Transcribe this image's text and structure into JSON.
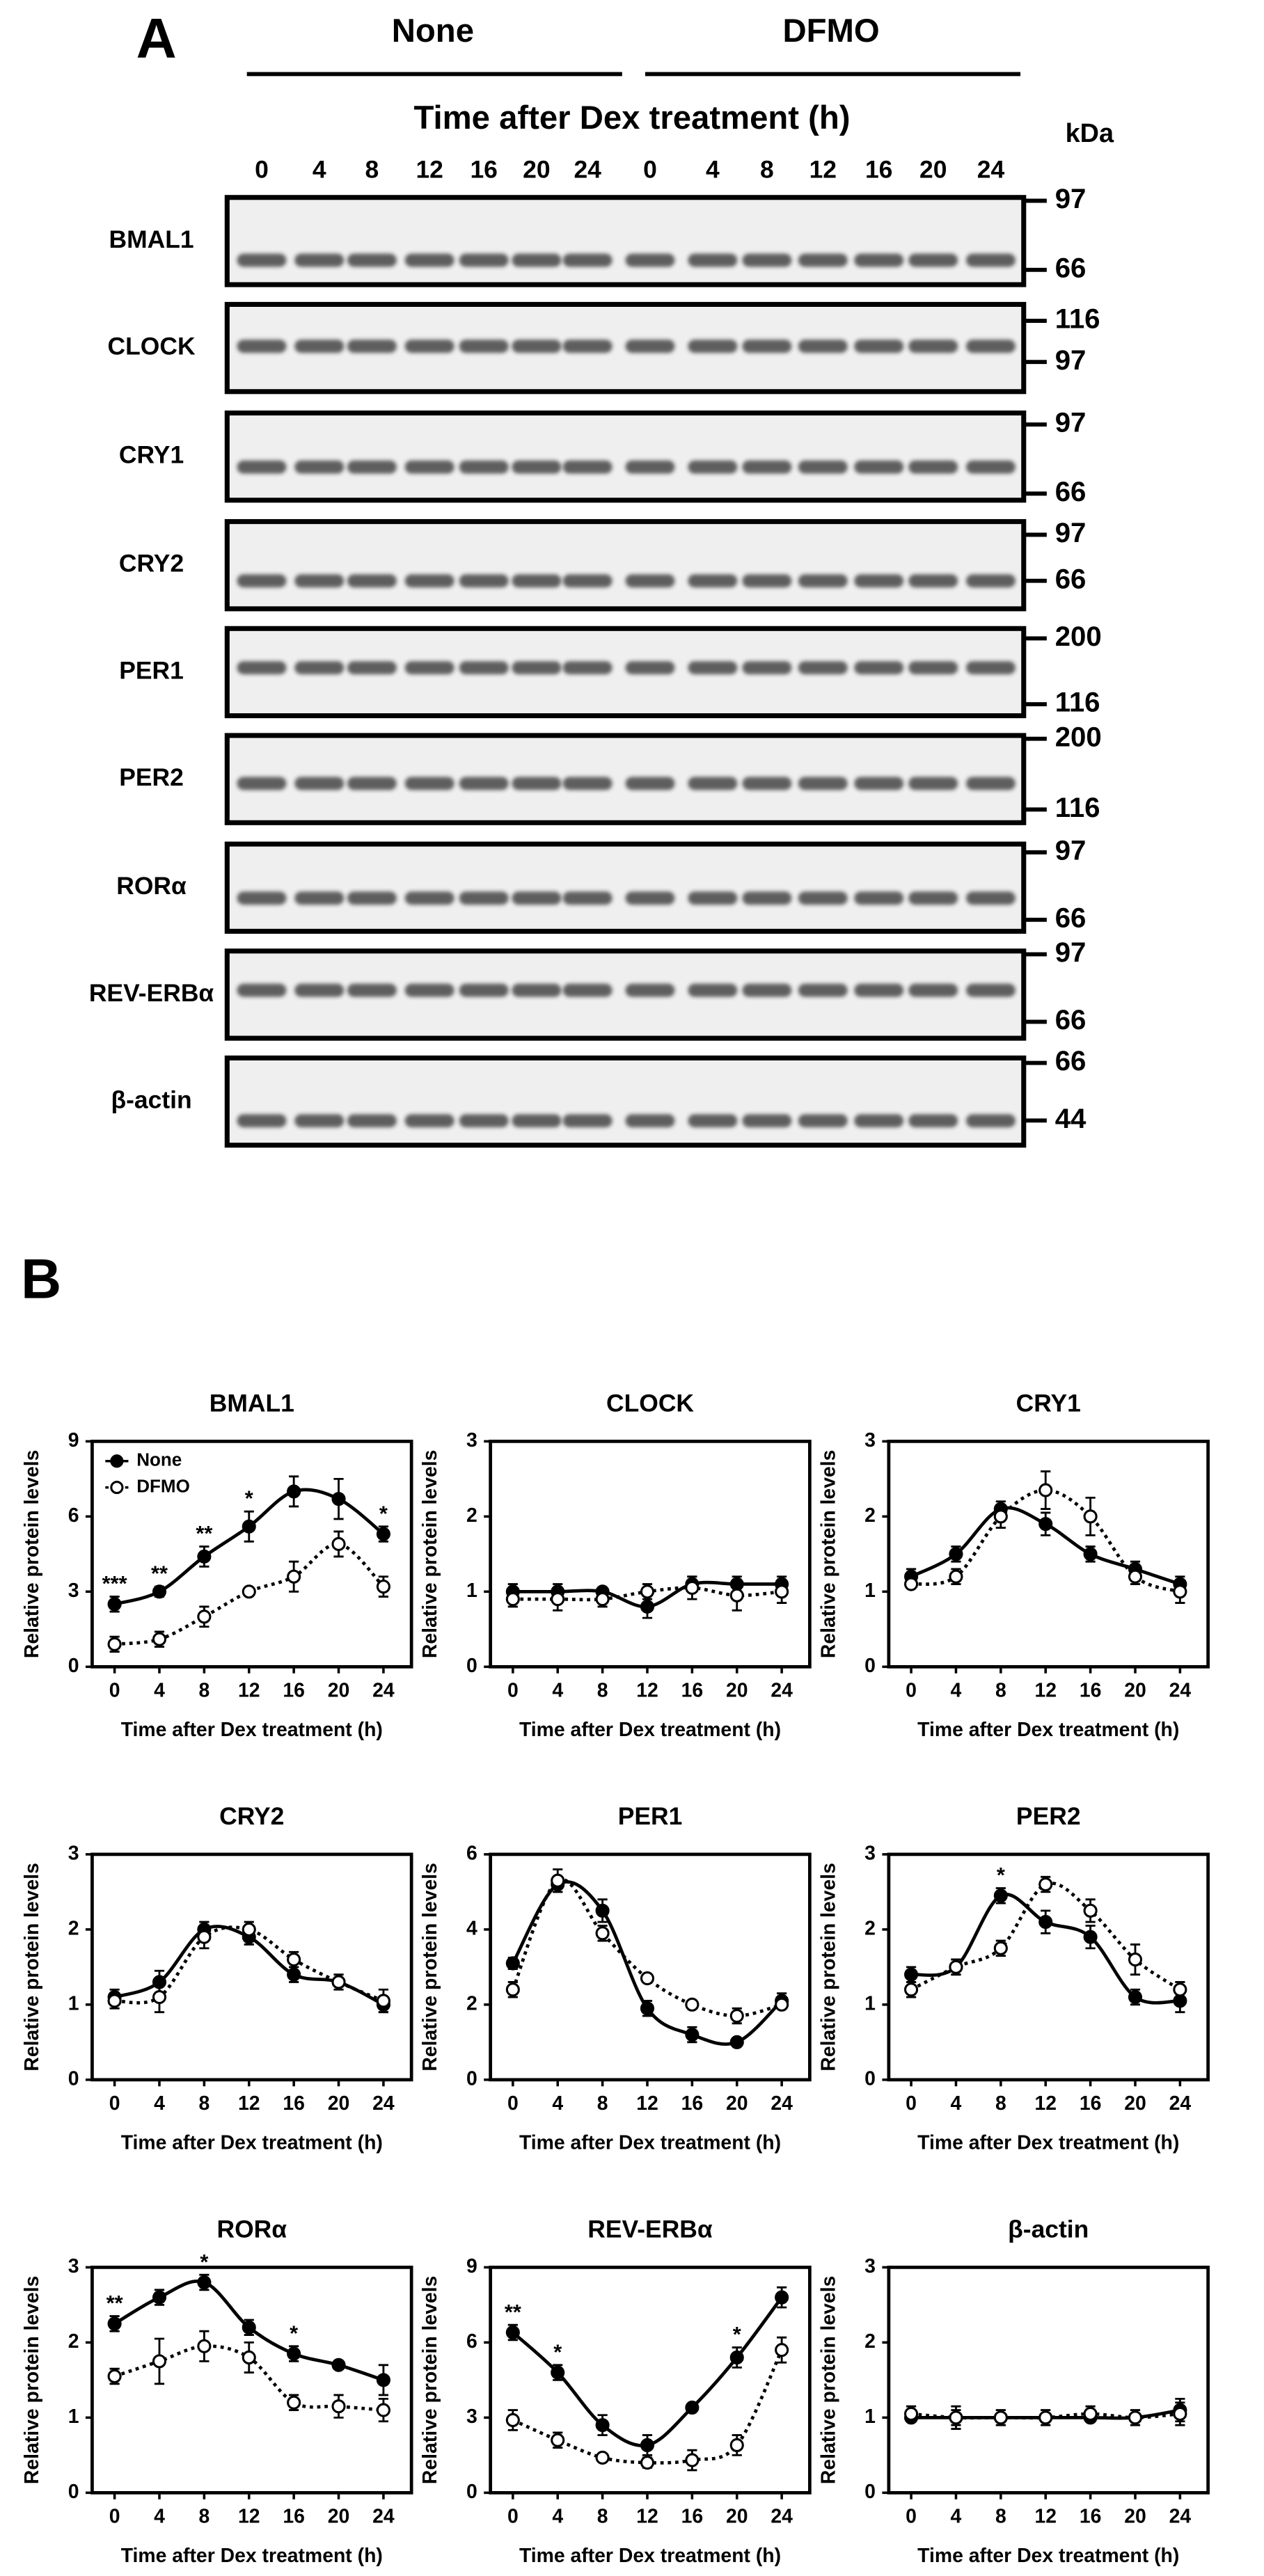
{
  "panel_a": {
    "label": "A",
    "groups": [
      "None",
      "DFMO"
    ],
    "axis_label": "Time after Dex treatment (h)",
    "unit": "kDa",
    "lanes": [
      0,
      4,
      8,
      12,
      16,
      20,
      24,
      0,
      4,
      8,
      12,
      16,
      20,
      24
    ],
    "rows": [
      {
        "label": "BMAL1",
        "markers": [
          97,
          66
        ]
      },
      {
        "label": "CLOCK",
        "markers": [
          116,
          97
        ]
      },
      {
        "label": "CRY1",
        "markers": [
          97,
          66
        ]
      },
      {
        "label": "CRY2",
        "markers": [
          97,
          66
        ]
      },
      {
        "label": "PER1",
        "markers": [
          200,
          116
        ]
      },
      {
        "label": "PER2",
        "markers": [
          200,
          116
        ]
      },
      {
        "label": "RORα",
        "markers": [
          97,
          66
        ]
      },
      {
        "label": "REV-ERBα",
        "markers": [
          97,
          66
        ]
      },
      {
        "label": "β-actin",
        "markers": [
          66,
          44
        ]
      }
    ]
  },
  "panel_b": {
    "label": "B"
  },
  "chart_data": [
    {
      "type": "line",
      "title": "BMAL1",
      "x_label": "Time after Dex treatment (h)",
      "y_label": "Relative protein levels",
      "x": [
        0,
        4,
        8,
        12,
        16,
        20,
        24
      ],
      "xlim": [
        -2,
        26.5
      ],
      "xticks": [
        0,
        4,
        8,
        12,
        16,
        20,
        24
      ],
      "ylim": [
        0,
        9
      ],
      "yticks": [
        0,
        3,
        6,
        9
      ],
      "legend": "upper left",
      "series": [
        {
          "name": "None",
          "color": "#000000",
          "marker_fill": "#000000",
          "dash": "solid",
          "values": [
            2.5,
            3.0,
            4.4,
            5.6,
            7.0,
            6.7,
            5.3
          ],
          "errors": [
            0.3,
            0.2,
            0.4,
            0.6,
            0.6,
            0.8,
            0.3
          ]
        },
        {
          "name": "DFMO",
          "color": "#000000",
          "marker_fill": "#ffffff",
          "dash": "dotted",
          "values": [
            0.9,
            1.1,
            2.0,
            3.0,
            3.6,
            4.9,
            3.2
          ],
          "errors": [
            0.3,
            0.3,
            0.4,
            0.1,
            0.6,
            0.5,
            0.4
          ]
        }
      ],
      "annotations": [
        {
          "x": 0,
          "label": "***"
        },
        {
          "x": 4,
          "label": "**"
        },
        {
          "x": 8,
          "label": "**"
        },
        {
          "x": 12,
          "label": "*"
        },
        {
          "x": 24,
          "label": "*"
        }
      ]
    },
    {
      "type": "line",
      "title": "CLOCK",
      "x_label": "Time after Dex treatment (h)",
      "y_label": "Relative protein levels",
      "x": [
        0,
        4,
        8,
        12,
        16,
        20,
        24
      ],
      "xlim": [
        -2,
        26.5
      ],
      "xticks": [
        0,
        4,
        8,
        12,
        16,
        20,
        24
      ],
      "ylim": [
        0,
        3
      ],
      "yticks": [
        0,
        1,
        2,
        3
      ],
      "series": [
        {
          "color": "#000000",
          "marker_fill": "#000000",
          "dash": "solid",
          "values": [
            1.0,
            1.0,
            1.0,
            0.8,
            1.1,
            1.1,
            1.1
          ],
          "errors": [
            0.1,
            0.1,
            0.05,
            0.15,
            0.1,
            0.1,
            0.1
          ]
        },
        {
          "color": "#000000",
          "marker_fill": "#ffffff",
          "dash": "dotted",
          "values": [
            0.9,
            0.9,
            0.9,
            1.0,
            1.05,
            0.95,
            1.0
          ],
          "errors": [
            0.1,
            0.15,
            0.1,
            0.1,
            0.15,
            0.2,
            0.15
          ]
        }
      ]
    },
    {
      "type": "line",
      "title": "CRY1",
      "x_label": "Time after Dex treatment (h)",
      "y_label": "Relative protein levels",
      "x": [
        0,
        4,
        8,
        12,
        16,
        20,
        24
      ],
      "xlim": [
        -2,
        26.5
      ],
      "xticks": [
        0,
        4,
        8,
        12,
        16,
        20,
        24
      ],
      "ylim": [
        0,
        3
      ],
      "yticks": [
        0,
        1,
        2,
        3
      ],
      "series": [
        {
          "color": "#000000",
          "marker_fill": "#000000",
          "dash": "solid",
          "values": [
            1.2,
            1.5,
            2.1,
            1.9,
            1.5,
            1.3,
            1.1
          ],
          "errors": [
            0.1,
            0.1,
            0.1,
            0.15,
            0.1,
            0.1,
            0.1
          ]
        },
        {
          "color": "#000000",
          "marker_fill": "#ffffff",
          "dash": "dotted",
          "values": [
            1.1,
            1.2,
            2.0,
            2.35,
            2.0,
            1.2,
            1.0
          ],
          "errors": [
            0.05,
            0.1,
            0.15,
            0.25,
            0.25,
            0.1,
            0.15
          ]
        }
      ]
    },
    {
      "type": "line",
      "title": "CRY2",
      "x_label": "Time after Dex treatment (h)",
      "y_label": "Relative protein levels",
      "x": [
        0,
        4,
        8,
        12,
        16,
        20,
        24
      ],
      "xlim": [
        -2,
        26.5
      ],
      "xticks": [
        0,
        4,
        8,
        12,
        16,
        20,
        24
      ],
      "ylim": [
        0,
        3
      ],
      "yticks": [
        0,
        1,
        2,
        3
      ],
      "series": [
        {
          "color": "#000000",
          "marker_fill": "#000000",
          "dash": "solid",
          "values": [
            1.1,
            1.3,
            2.0,
            1.9,
            1.4,
            1.3,
            1.0
          ],
          "errors": [
            0.1,
            0.15,
            0.1,
            0.1,
            0.1,
            0.1,
            0.1
          ]
        },
        {
          "color": "#000000",
          "marker_fill": "#ffffff",
          "dash": "dotted",
          "values": [
            1.05,
            1.1,
            1.9,
            2.0,
            1.6,
            1.3,
            1.05
          ],
          "errors": [
            0.1,
            0.2,
            0.15,
            0.1,
            0.1,
            0.05,
            0.15
          ]
        }
      ]
    },
    {
      "type": "line",
      "title": "PER1",
      "x_label": "Time after Dex treatment (h)",
      "y_label": "Relative protein levels",
      "x": [
        0,
        4,
        8,
        12,
        16,
        20,
        24
      ],
      "xlim": [
        -2,
        26.5
      ],
      "xticks": [
        0,
        4,
        8,
        12,
        16,
        20,
        24
      ],
      "ylim": [
        0,
        6
      ],
      "yticks": [
        0,
        2,
        4,
        6
      ],
      "series": [
        {
          "color": "#000000",
          "marker_fill": "#000000",
          "dash": "solid",
          "values": [
            3.1,
            5.2,
            4.5,
            1.9,
            1.2,
            1.0,
            2.1
          ],
          "errors": [
            0.15,
            0.2,
            0.3,
            0.2,
            0.2,
            0.1,
            0.2
          ]
        },
        {
          "color": "#000000",
          "marker_fill": "#ffffff",
          "dash": "dotted",
          "values": [
            2.4,
            5.3,
            3.9,
            2.7,
            2.0,
            1.7,
            2.0
          ],
          "errors": [
            0.2,
            0.3,
            0.2,
            0.1,
            0.1,
            0.2,
            0.1
          ]
        }
      ]
    },
    {
      "type": "line",
      "title": "PER2",
      "x_label": "Time after Dex treatment (h)",
      "y_label": "Relative protein levels",
      "x": [
        0,
        4,
        8,
        12,
        16,
        20,
        24
      ],
      "xlim": [
        -2,
        26.5
      ],
      "xticks": [
        0,
        4,
        8,
        12,
        16,
        20,
        24
      ],
      "ylim": [
        0,
        3
      ],
      "yticks": [
        0,
        1,
        2,
        3
      ],
      "series": [
        {
          "color": "#000000",
          "marker_fill": "#000000",
          "dash": "solid",
          "values": [
            1.4,
            1.5,
            2.45,
            2.1,
            1.9,
            1.1,
            1.05
          ],
          "errors": [
            0.1,
            0.1,
            0.1,
            0.15,
            0.15,
            0.1,
            0.15
          ]
        },
        {
          "color": "#000000",
          "marker_fill": "#ffffff",
          "dash": "dotted",
          "values": [
            1.2,
            1.5,
            1.75,
            2.6,
            2.25,
            1.6,
            1.2
          ],
          "errors": [
            0.1,
            0.1,
            0.1,
            0.1,
            0.15,
            0.2,
            0.1
          ]
        }
      ],
      "annotations": [
        {
          "x": 8,
          "label": "*"
        }
      ]
    },
    {
      "type": "line",
      "title": "RORα",
      "x_label": "Time after Dex treatment (h)",
      "y_label": "Relative protein levels",
      "x": [
        0,
        4,
        8,
        12,
        16,
        20,
        24
      ],
      "xlim": [
        -2,
        26.5
      ],
      "xticks": [
        0,
        4,
        8,
        12,
        16,
        20,
        24
      ],
      "ylim": [
        0,
        3
      ],
      "yticks": [
        0,
        1,
        2,
        3
      ],
      "series": [
        {
          "color": "#000000",
          "marker_fill": "#000000",
          "dash": "solid",
          "values": [
            2.25,
            2.6,
            2.8,
            2.2,
            1.85,
            1.7,
            1.5
          ],
          "errors": [
            0.1,
            0.1,
            0.1,
            0.1,
            0.1,
            0.05,
            0.2
          ]
        },
        {
          "color": "#000000",
          "marker_fill": "#ffffff",
          "dash": "dotted",
          "values": [
            1.55,
            1.75,
            1.95,
            1.8,
            1.2,
            1.15,
            1.1
          ],
          "errors": [
            0.1,
            0.3,
            0.2,
            0.2,
            0.1,
            0.15,
            0.15
          ]
        }
      ],
      "annotations": [
        {
          "x": 0,
          "label": "**"
        },
        {
          "x": 8,
          "label": "*"
        },
        {
          "x": 16,
          "label": "*"
        }
      ]
    },
    {
      "type": "line",
      "title": "REV-ERBα",
      "x_label": "Time after Dex treatment (h)",
      "y_label": "Relative protein levels",
      "x": [
        0,
        4,
        8,
        12,
        16,
        20,
        24
      ],
      "xlim": [
        -2,
        26.5
      ],
      "xticks": [
        0,
        4,
        8,
        12,
        16,
        20,
        24
      ],
      "ylim": [
        0,
        9
      ],
      "yticks": [
        0,
        3,
        6,
        9
      ],
      "series": [
        {
          "color": "#000000",
          "marker_fill": "#000000",
          "dash": "solid",
          "values": [
            6.4,
            4.8,
            2.7,
            1.9,
            3.4,
            5.4,
            7.8
          ],
          "errors": [
            0.3,
            0.3,
            0.4,
            0.4,
            0.15,
            0.4,
            0.4
          ]
        },
        {
          "color": "#000000",
          "marker_fill": "#ffffff",
          "dash": "dotted",
          "values": [
            2.9,
            2.1,
            1.4,
            1.2,
            1.3,
            1.9,
            5.7
          ],
          "errors": [
            0.4,
            0.3,
            0.1,
            0.2,
            0.4,
            0.4,
            0.5
          ]
        }
      ],
      "annotations": [
        {
          "x": 0,
          "label": "**"
        },
        {
          "x": 4,
          "label": "*"
        },
        {
          "x": 20,
          "label": "*"
        }
      ]
    },
    {
      "type": "line",
      "title": "β-actin",
      "x_label": "Time after Dex treatment (h)",
      "y_label": "Relative protein levels",
      "x": [
        0,
        4,
        8,
        12,
        16,
        20,
        24
      ],
      "xlim": [
        -2,
        26.5
      ],
      "xticks": [
        0,
        4,
        8,
        12,
        16,
        20,
        24
      ],
      "ylim": [
        0,
        3
      ],
      "yticks": [
        0,
        1,
        2,
        3
      ],
      "series": [
        {
          "color": "#000000",
          "marker_fill": "#000000",
          "dash": "solid",
          "values": [
            1.0,
            1.0,
            1.0,
            1.0,
            1.0,
            1.0,
            1.1
          ],
          "errors": [
            0.05,
            0.1,
            0.05,
            0.1,
            0.05,
            0.05,
            0.15
          ]
        },
        {
          "color": "#000000",
          "marker_fill": "#ffffff",
          "dash": "dotted",
          "values": [
            1.05,
            1.0,
            1.0,
            1.0,
            1.05,
            1.0,
            1.05
          ],
          "errors": [
            0.1,
            0.15,
            0.1,
            0.05,
            0.1,
            0.1,
            0.15
          ]
        }
      ]
    }
  ]
}
